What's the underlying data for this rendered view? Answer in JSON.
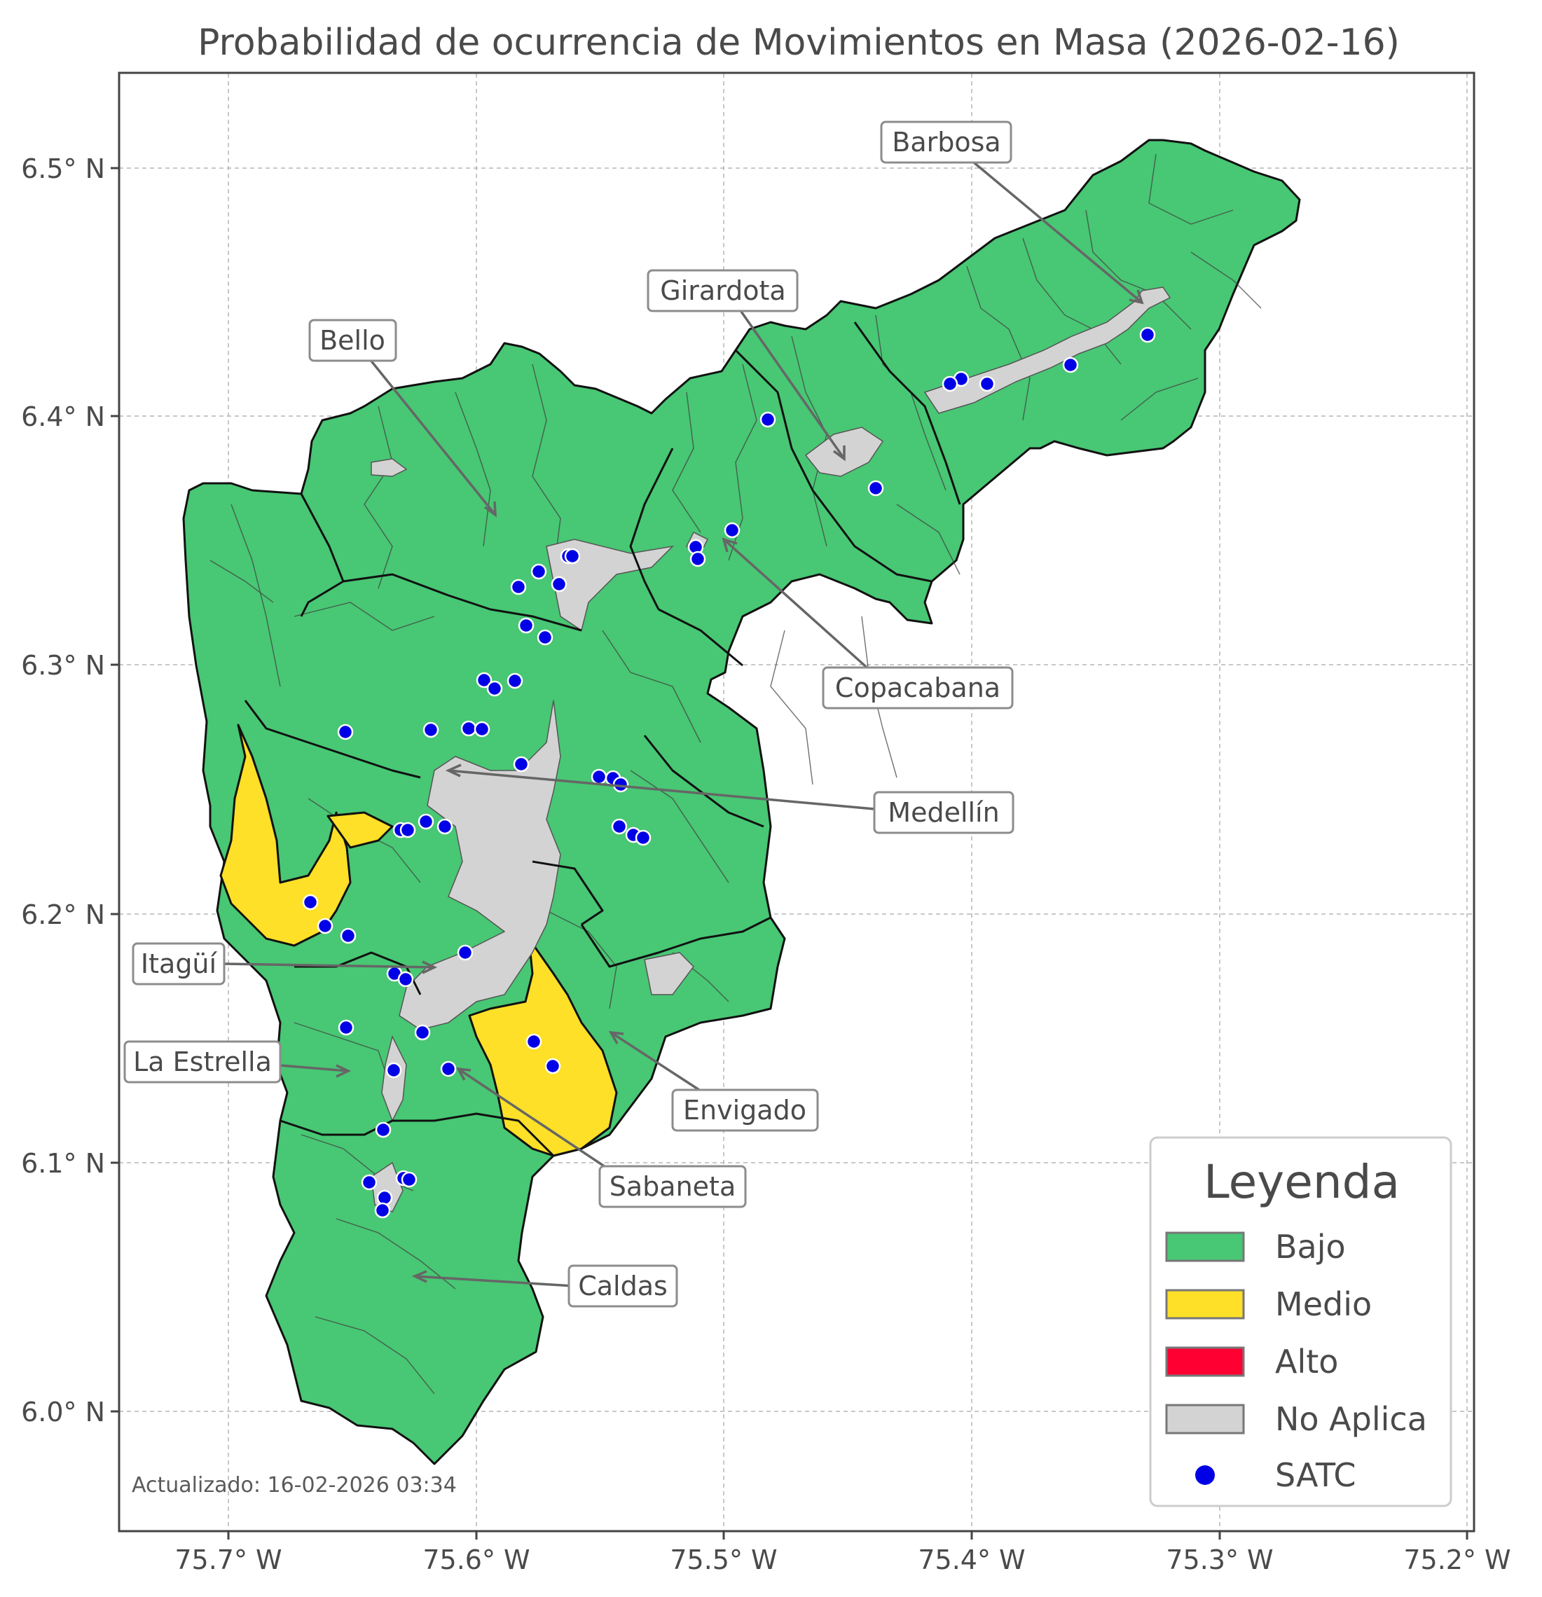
{
  "title": "Probabilidad de ocurrencia de Movimientos en Masa (2026-02-16)",
  "axes": {
    "x_ticks": [
      "75.7° W",
      "75.6° W",
      "75.5° W",
      "75.4° W",
      "75.3° W",
      "75.2° W"
    ],
    "y_ticks": [
      "6.5° N",
      "6.4° N",
      "6.3° N",
      "6.2° N",
      "6.1° N",
      "6.0° N"
    ],
    "grid": true
  },
  "municipalities": {
    "barbosa": "Barbosa",
    "girardota": "Girardota",
    "bello": "Bello",
    "copacabana": "Copacabana",
    "medellin": "Medellín",
    "itagui": "Itagüí",
    "la_estrella": "La Estrella",
    "envigado": "Envigado",
    "sabaneta": "Sabaneta",
    "caldas": "Caldas"
  },
  "legend": {
    "title": "Leyenda",
    "position": "bottom-right",
    "items": [
      {
        "label": "Bajo",
        "color": "#48c774"
      },
      {
        "label": "Medio",
        "color": "#fde027"
      },
      {
        "label": "Alto",
        "color": "#ff0033"
      },
      {
        "label": "No Aplica",
        "color": "#d3d3d3"
      },
      {
        "label": "SATC",
        "color": "#0000e6"
      }
    ]
  },
  "updated": "Actualizado: 16-02-2026 03:34"
}
